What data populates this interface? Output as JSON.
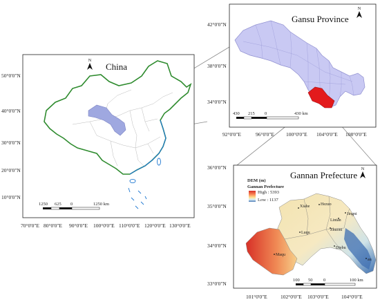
{
  "panels": {
    "china": {
      "title": "China",
      "lat_labels": [
        "50°0'0\"N",
        "40°0'0\"N",
        "30°0'0\"N",
        "20°0'0\"N",
        "10°0'0\"N"
      ],
      "lon_labels": [
        "70°0'0\"E",
        "80°0'0\"E",
        "90°0'0\"E",
        "100°0'0\"E",
        "110°0'0\"E",
        "120°0'0\"E",
        "130°0'0\"E"
      ],
      "scale_labels": [
        "1250",
        "625",
        "0",
        "1250 km"
      ],
      "north_label": "N",
      "border_color": "#2e8b2e",
      "highlight_color": "#9fa8e0",
      "coast_color": "#1f78d1"
    },
    "gansu": {
      "title": "Gansu Province",
      "lat_labels": [
        "42°0'0\"N",
        "38°0'0\"N",
        "34°0'0\"N"
      ],
      "lon_labels": [
        "92°0'0\"E",
        "96°0'0\"E",
        "100°0'0\"E",
        "104°0'0\"E",
        "108°0'0\"E"
      ],
      "scale_labels": [
        "430",
        "215",
        "0",
        "430 km"
      ],
      "north_label": "N",
      "fill_color": "#c9c9f3",
      "highlight_color": "#e31a1c"
    },
    "gannan": {
      "title": "Gannan Prefecture",
      "legend_title": "DEM (m)",
      "legend_subtitle": "Gannan Prefecture",
      "legend_high": "High : 5393",
      "legend_low": "Low : 1137",
      "lat_labels": [
        "36°0'0\"N",
        "35°0'0\"N",
        "34°0'0\"N",
        "33°0'0\"N"
      ],
      "lon_labels": [
        "101°0'0\"E",
        "102°0'0\"E",
        "103°0'0\"E",
        "104°0'0\"E"
      ],
      "scale_labels": [
        "100",
        "50",
        "0",
        "100 km"
      ],
      "north_label": "N",
      "cities": [
        "Xiahe",
        "Hezuo",
        "Lintan",
        "Zhuoni",
        "Luqu",
        "Maqu",
        "Diebu",
        "Zhouqu"
      ],
      "cities_partial": [
        "Jingni",
        "au"
      ]
    }
  }
}
